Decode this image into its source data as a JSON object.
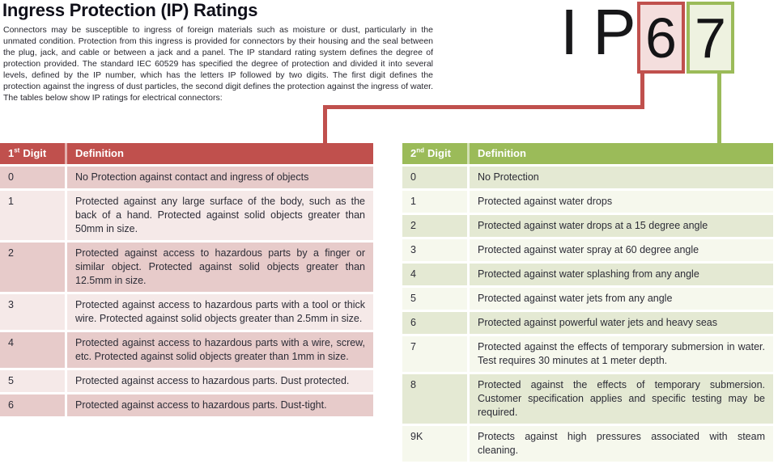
{
  "page": {
    "title": "Ingress Protection (IP) Ratings",
    "intro": "Connectors may be susceptible to ingress of foreign materials such as moisture or dust, particularly in the unmated condition. Protection from this ingress is provided for connectors by their housing and the seal between the plug, jack, and cable or between a jack and a panel. The IP standard rating system defines the degree of protection provided. The standard IEC 60529 has specified the degree of protection and divided it into several levels, defined by the IP number, which has the letters IP followed by two digits. The first digit defines the protection against the ingress of dust particles, the second digit defines the protection against the ingress of water. The tables below show IP ratings for electrical connectors:"
  },
  "ip_graphic": {
    "prefix": "IP",
    "first_digit": "6",
    "second_digit": "7"
  },
  "colors": {
    "red_accent": "#c0504d",
    "red_box_fill": "#f4dedd",
    "pink_row_dark": "#e7cbca",
    "pink_row_light": "#f5e9e8",
    "green_accent": "#9bbb59",
    "green_box_fill": "#eef2e0",
    "green_row_dark": "#e4e9d3",
    "green_row_light": "#f6f8ed"
  },
  "first_digit_table": {
    "header": {
      "num": "1",
      "sup": "st",
      "word": "Digit",
      "definition": "Definition"
    },
    "rows": [
      {
        "digit": "0",
        "definition": "No Protection against contact and ingress of objects"
      },
      {
        "digit": "1",
        "definition": "Protected against any large surface of the body, such as the back of a hand. Protected against solid objects greater than 50mm in size."
      },
      {
        "digit": "2",
        "definition": "Protected against access to hazardous parts by a finger or similar object. Protected against solid objects greater than 12.5mm in size."
      },
      {
        "digit": "3",
        "definition": "Protected against access to hazardous parts with a tool or thick wire. Protected against solid objects greater than 2.5mm in size."
      },
      {
        "digit": "4",
        "definition": "Protected against access to hazardous parts with a wire, screw, etc. Protected against solid objects greater than 1mm in size."
      },
      {
        "digit": "5",
        "definition": "Protected against access to hazardous parts. Dust protected."
      },
      {
        "digit": "6",
        "definition": "Protected against access to hazardous parts. Dust-tight."
      }
    ]
  },
  "second_digit_table": {
    "header": {
      "num": "2",
      "sup": "nd",
      "word": "Digit",
      "definition": "Definition"
    },
    "rows": [
      {
        "digit": "0",
        "definition": "No Protection"
      },
      {
        "digit": "1",
        "definition": "Protected against water drops"
      },
      {
        "digit": "2",
        "definition": "Protected against water drops at a 15 degree angle"
      },
      {
        "digit": "3",
        "definition": "Protected against water spray at 60 degree angle"
      },
      {
        "digit": "4",
        "definition": "Protected against water splashing from any angle"
      },
      {
        "digit": "5",
        "definition": "Protected against water jets from any angle"
      },
      {
        "digit": "6",
        "definition": "Protected against powerful water jets and heavy seas"
      },
      {
        "digit": "7",
        "definition": "Protected against the effects of temporary submersion in water. Test requires 30 minutes at 1 meter depth."
      },
      {
        "digit": "8",
        "definition": "Protected against the effects of temporary submersion. Customer specification applies and specific testing may be required."
      },
      {
        "digit": "9K",
        "definition": "Protects against high pressures associated with steam cleaning."
      }
    ]
  }
}
